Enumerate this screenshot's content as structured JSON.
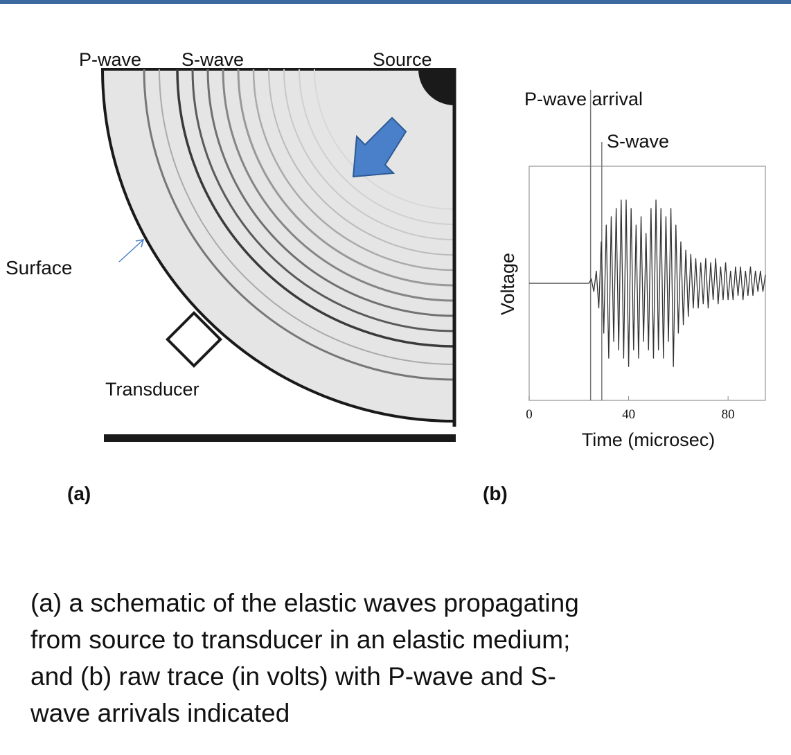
{
  "diagram": {
    "p_wave": "P-wave",
    "s_wave": "S-wave",
    "source": "Source",
    "surface": "Surface",
    "transducer": "Transducer",
    "panel_a": "(a)",
    "panel_b": "(b)"
  },
  "chart_data": {
    "type": "line",
    "xlabel": "Time (microsec)",
    "ylabel": "Voltage",
    "annotations": [
      {
        "text": "P-wave arrival",
        "x": 24.7
      },
      {
        "text": "S-wave",
        "x": 29.2
      }
    ],
    "xlim": [
      0,
      95
    ],
    "xticks": [
      0,
      40,
      80
    ],
    "ylim": [
      -1.4,
      1.4
    ],
    "x": [
      0,
      1,
      2,
      3,
      4,
      5,
      6,
      7,
      8,
      9,
      10,
      11,
      12,
      13,
      14,
      15,
      16,
      17,
      18,
      19,
      20,
      21,
      22,
      23,
      24,
      25,
      26,
      27,
      28,
      29,
      30,
      31,
      32,
      33,
      34,
      35,
      36,
      37,
      38,
      39,
      40,
      41,
      42,
      43,
      44,
      45,
      46,
      47,
      48,
      49,
      50,
      51,
      52,
      53,
      54,
      55,
      56,
      57,
      58,
      59,
      60,
      61,
      62,
      63,
      64,
      65,
      66,
      67,
      68,
      69,
      70,
      71,
      72,
      73,
      74,
      75,
      76,
      77,
      78,
      79,
      80,
      81,
      82,
      83,
      84,
      85,
      86,
      87,
      88,
      89,
      90,
      91,
      92,
      93,
      94,
      95
    ],
    "series": [
      {
        "color": "#333333",
        "values": [
          0,
          0,
          0,
          0,
          0,
          0,
          0,
          0,
          0,
          0,
          0,
          0,
          0,
          0,
          0,
          0,
          0,
          0,
          0,
          0,
          0,
          0,
          0,
          0,
          0,
          0.05,
          -0.1,
          0.15,
          -0.3,
          0.5,
          -0.6,
          0.7,
          -0.9,
          0.8,
          -0.7,
          0.9,
          -0.8,
          1.0,
          -0.9,
          1.0,
          -1.0,
          0.9,
          -0.8,
          0.7,
          -0.9,
          0.8,
          -0.7,
          0.6,
          -0.8,
          0.9,
          -0.9,
          1.0,
          -0.8,
          0.9,
          -0.9,
          0.8,
          -0.7,
          0.9,
          -1.0,
          0.7,
          -0.6,
          0.5,
          -0.5,
          0.4,
          -0.4,
          0.35,
          -0.3,
          0.3,
          -0.3,
          0.25,
          -0.25,
          0.3,
          -0.3,
          0.25,
          -0.2,
          0.3,
          -0.25,
          0.2,
          -0.2,
          0.25,
          -0.2,
          0.15,
          -0.2,
          0.2,
          -0.15,
          0.2,
          -0.2,
          0.15,
          -0.15,
          0.2,
          -0.15,
          0.15,
          -0.1,
          0.15,
          -0.1,
          0.1
        ]
      }
    ]
  },
  "caption": [
    "(a) a schematic of the elastic waves propagating",
    "from source to transducer in an elastic medium;",
    "and (b) raw trace (in volts) with P-wave and S-",
    "wave arrivals indicated"
  ]
}
